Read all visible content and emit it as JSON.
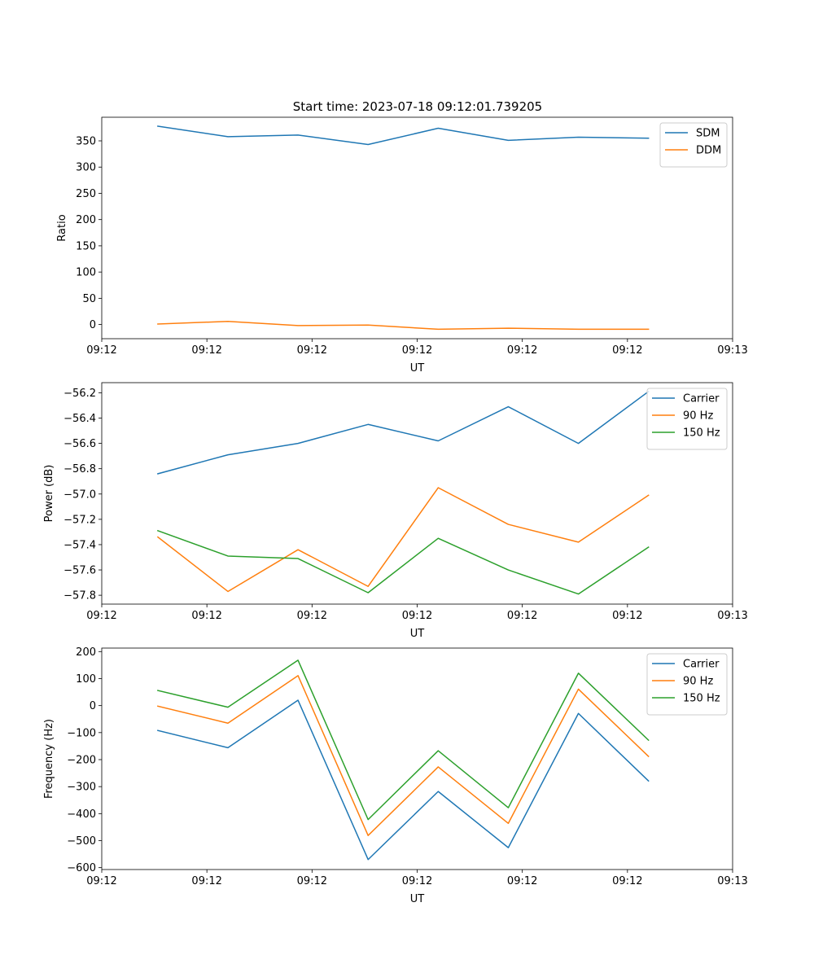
{
  "figure": {
    "title": "Start time: 2023-07-18 09:12:01.739205"
  },
  "chart_data": [
    {
      "type": "line",
      "id": "ratio",
      "title": "Start time: 2023-07-18 09:12:01.739205",
      "xlabel": "UT",
      "ylabel": "Ratio",
      "x": [
        1,
        2,
        3,
        4,
        5,
        6,
        7,
        8
      ],
      "xlim": [
        0.2,
        9.2
      ],
      "xticks": [
        0.2,
        1.7,
        3.2,
        4.7,
        6.2,
        7.7,
        9.2
      ],
      "xtick_labels": [
        "09:12",
        "09:12",
        "09:12",
        "09:12",
        "09:12",
        "09:12",
        "09:13"
      ],
      "ylim": [
        -27,
        395
      ],
      "yticks": [
        0,
        50,
        100,
        150,
        200,
        250,
        300,
        350
      ],
      "ytick_labels": [
        "0",
        "50",
        "100",
        "150",
        "200",
        "250",
        "300",
        "350"
      ],
      "legend": "top-right",
      "series": [
        {
          "name": "SDM",
          "color": "#1f77b4",
          "values": [
            378,
            358,
            361,
            343,
            374,
            351,
            357,
            355
          ]
        },
        {
          "name": "DDM",
          "color": "#ff7f0e",
          "values": [
            1,
            6,
            -2,
            -1,
            -9,
            -7,
            -9,
            -9
          ]
        }
      ]
    },
    {
      "type": "line",
      "id": "power",
      "title": "",
      "xlabel": "UT",
      "ylabel": "Power (dB)",
      "x": [
        1,
        2,
        3,
        4,
        5,
        6,
        7,
        8
      ],
      "xlim": [
        0.2,
        9.2
      ],
      "xticks": [
        0.2,
        1.7,
        3.2,
        4.7,
        6.2,
        7.7,
        9.2
      ],
      "xtick_labels": [
        "09:12",
        "09:12",
        "09:12",
        "09:12",
        "09:12",
        "09:12",
        "09:13"
      ],
      "ylim": [
        -57.87,
        -56.12
      ],
      "yticks": [
        -57.8,
        -57.6,
        -57.4,
        -57.2,
        -57.0,
        -56.8,
        -56.6,
        -56.4,
        -56.2
      ],
      "ytick_labels": [
        "−57.8",
        "−57.6",
        "−57.4",
        "−57.2",
        "−57.0",
        "−56.8",
        "−56.6",
        "−56.4",
        "−56.2"
      ],
      "legend": "top-right",
      "series": [
        {
          "name": "Carrier",
          "color": "#1f77b4",
          "values": [
            -56.84,
            -56.69,
            -56.6,
            -56.45,
            -56.58,
            -56.31,
            -56.6,
            -56.19
          ]
        },
        {
          "name": "90 Hz",
          "color": "#ff7f0e",
          "values": [
            -57.34,
            -57.77,
            -57.44,
            -57.73,
            -56.95,
            -57.24,
            -57.38,
            -57.01
          ]
        },
        {
          "name": "150 Hz",
          "color": "#2ca02c",
          "values": [
            -57.29,
            -57.49,
            -57.51,
            -57.78,
            -57.35,
            -57.6,
            -57.79,
            -57.42
          ]
        }
      ]
    },
    {
      "type": "line",
      "id": "frequency",
      "title": "",
      "xlabel": "UT",
      "ylabel": "Frequency (Hz)",
      "x": [
        1,
        2,
        3,
        4,
        5,
        6,
        7,
        8
      ],
      "xlim": [
        0.2,
        9.2
      ],
      "xticks": [
        0.2,
        1.7,
        3.2,
        4.7,
        6.2,
        7.7,
        9.2
      ],
      "xtick_labels": [
        "09:12",
        "09:12",
        "09:12",
        "09:12",
        "09:12",
        "09:12",
        "09:13"
      ],
      "ylim": [
        -607,
        213
      ],
      "yticks": [
        -600,
        -500,
        -400,
        -300,
        -200,
        -100,
        0,
        100,
        200
      ],
      "ytick_labels": [
        "−600",
        "−500",
        "−400",
        "−300",
        "−200",
        "−100",
        "0",
        "100",
        "200"
      ],
      "legend": "top-right",
      "series": [
        {
          "name": "Carrier",
          "color": "#1f77b4",
          "values": [
            -92,
            -156,
            20,
            -570,
            -318,
            -526,
            -29,
            -279
          ]
        },
        {
          "name": "90 Hz",
          "color": "#ff7f0e",
          "values": [
            -2,
            -65,
            111,
            -481,
            -227,
            -436,
            61,
            -188
          ]
        },
        {
          "name": "150 Hz",
          "color": "#2ca02c",
          "values": [
            56,
            -6,
            168,
            -422,
            -167,
            -378,
            120,
            -128
          ]
        }
      ]
    }
  ]
}
